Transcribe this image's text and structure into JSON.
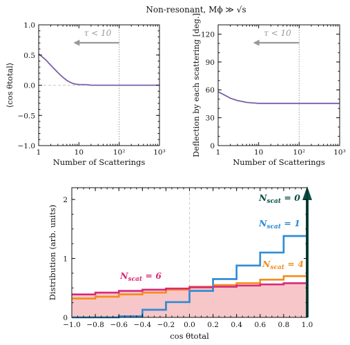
{
  "figure_title": "Non-resonant, Mϕ ≫ √s",
  "chart_data": [
    {
      "type": "line",
      "xlabel": "Number of Scatterings",
      "ylabel": "⟨cos θtotal⟩",
      "xscale": "log",
      "xlim": [
        1,
        1000
      ],
      "ylim": [
        -1,
        1
      ],
      "x_ticks": [
        "1",
        "10",
        "10²",
        "10³"
      ],
      "y_ticks": [
        "−1.0",
        "−0.5",
        "0.0",
        "0.5",
        "1.0"
      ],
      "annotation": "τ < 10",
      "vline_x": 100,
      "hline_y": 0,
      "series": [
        {
          "color": "#7b5ca6",
          "x": [
            1,
            1.5,
            2,
            3,
            4,
            5,
            6,
            7,
            8,
            10,
            15,
            20,
            30,
            50,
            100,
            200,
            500,
            1000
          ],
          "y": [
            0.52,
            0.42,
            0.33,
            0.21,
            0.13,
            0.08,
            0.05,
            0.03,
            0.02,
            0.01,
            0.01,
            0.0,
            0.0,
            0.0,
            0.0,
            0.0,
            0.0,
            0.0
          ]
        }
      ]
    },
    {
      "type": "line",
      "xlabel": "Number of Scatterings",
      "ylabel": "Deflection by each scattering [deg.]",
      "xscale": "log",
      "xlim": [
        1,
        1000
      ],
      "ylim": [
        0,
        130
      ],
      "x_ticks": [
        "1",
        "10",
        "10²",
        "10³"
      ],
      "y_ticks": [
        "0",
        "30",
        "60",
        "90",
        "120"
      ],
      "annotation": "τ < 10",
      "vline_x": 100,
      "series": [
        {
          "color": "#7b5ca6",
          "x": [
            1,
            1.5,
            2,
            3,
            4,
            5,
            7,
            10,
            20,
            50,
            100,
            300,
            1000
          ],
          "y": [
            58,
            54,
            51,
            48.5,
            47.5,
            46.5,
            46,
            45.5,
            45.5,
            45.5,
            45.5,
            45.5,
            45.5
          ]
        }
      ]
    },
    {
      "type": "histogram",
      "xlabel": "cos θtotal",
      "ylabel": "Distribution (arb. units)",
      "xlim": [
        -1,
        1
      ],
      "ylim": [
        0,
        2.2
      ],
      "x_ticks": [
        "−1.0",
        "−0.8",
        "−0.6",
        "−0.4",
        "−0.2",
        "0.0",
        "0.2",
        "0.4",
        "0.6",
        "0.8",
        "1.0"
      ],
      "y_ticks": [
        "0",
        "1",
        "2"
      ],
      "bin_edges": [
        -1.0,
        -0.8,
        -0.6,
        -0.4,
        -0.2,
        0.0,
        0.2,
        0.4,
        0.6,
        0.8,
        1.0
      ],
      "series": [
        {
          "name": "N_scat = 0",
          "label_main": "N",
          "label_sub": "scat",
          "label_rest": " = 0",
          "color": "#0b4f44",
          "delta_at": 1.0
        },
        {
          "name": "N_scat = 1",
          "label_main": "N",
          "label_sub": "scat",
          "label_rest": " = 1",
          "color": "#2b8ad6",
          "values": [
            0.0,
            0.0,
            0.02,
            0.13,
            0.26,
            0.45,
            0.65,
            0.88,
            1.1,
            1.38
          ]
        },
        {
          "name": "N_scat = 4",
          "label_main": "N",
          "label_sub": "scat",
          "label_rest": " = 4",
          "color": "#f28c1c",
          "values": [
            0.32,
            0.35,
            0.39,
            0.42,
            0.47,
            0.52,
            0.55,
            0.58,
            0.64,
            0.7
          ]
        },
        {
          "name": "N_scat = 6",
          "label_main": "N",
          "label_sub": "scat",
          "label_rest": " = 6",
          "color": "#d8287a",
          "fill": "#f7c6c8",
          "values": [
            0.39,
            0.42,
            0.45,
            0.47,
            0.49,
            0.51,
            0.52,
            0.54,
            0.56,
            0.58
          ]
        }
      ]
    }
  ]
}
